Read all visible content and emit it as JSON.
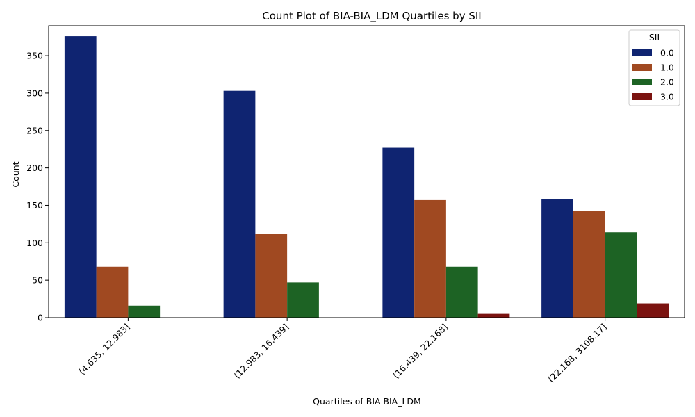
{
  "chart_data": {
    "type": "bar",
    "title": "Count Plot of BIA-BIA_LDM Quartiles by SII",
    "xlabel": "Quartiles of BIA-BIA_LDM",
    "ylabel": "Count",
    "ylim": [
      0,
      390
    ],
    "yticks": [
      0,
      50,
      100,
      150,
      200,
      250,
      300,
      350
    ],
    "categories": [
      "(4.635, 12.983]",
      "(12.983, 16.439]",
      "(16.439, 22.168]",
      "(22.168, 3108.17]"
    ],
    "legend": {
      "title": "SII",
      "position": "top-right"
    },
    "series": [
      {
        "name": "0.0",
        "color": "#0f2471",
        "values": [
          376,
          303,
          227,
          158
        ]
      },
      {
        "name": "1.0",
        "color": "#a04921",
        "values": [
          68,
          112,
          157,
          143
        ]
      },
      {
        "name": "2.0",
        "color": "#1d6324",
        "values": [
          16,
          47,
          68,
          114
        ]
      },
      {
        "name": "3.0",
        "color": "#7b1310",
        "values": [
          0,
          0,
          5,
          19
        ]
      }
    ],
    "grid": false
  }
}
